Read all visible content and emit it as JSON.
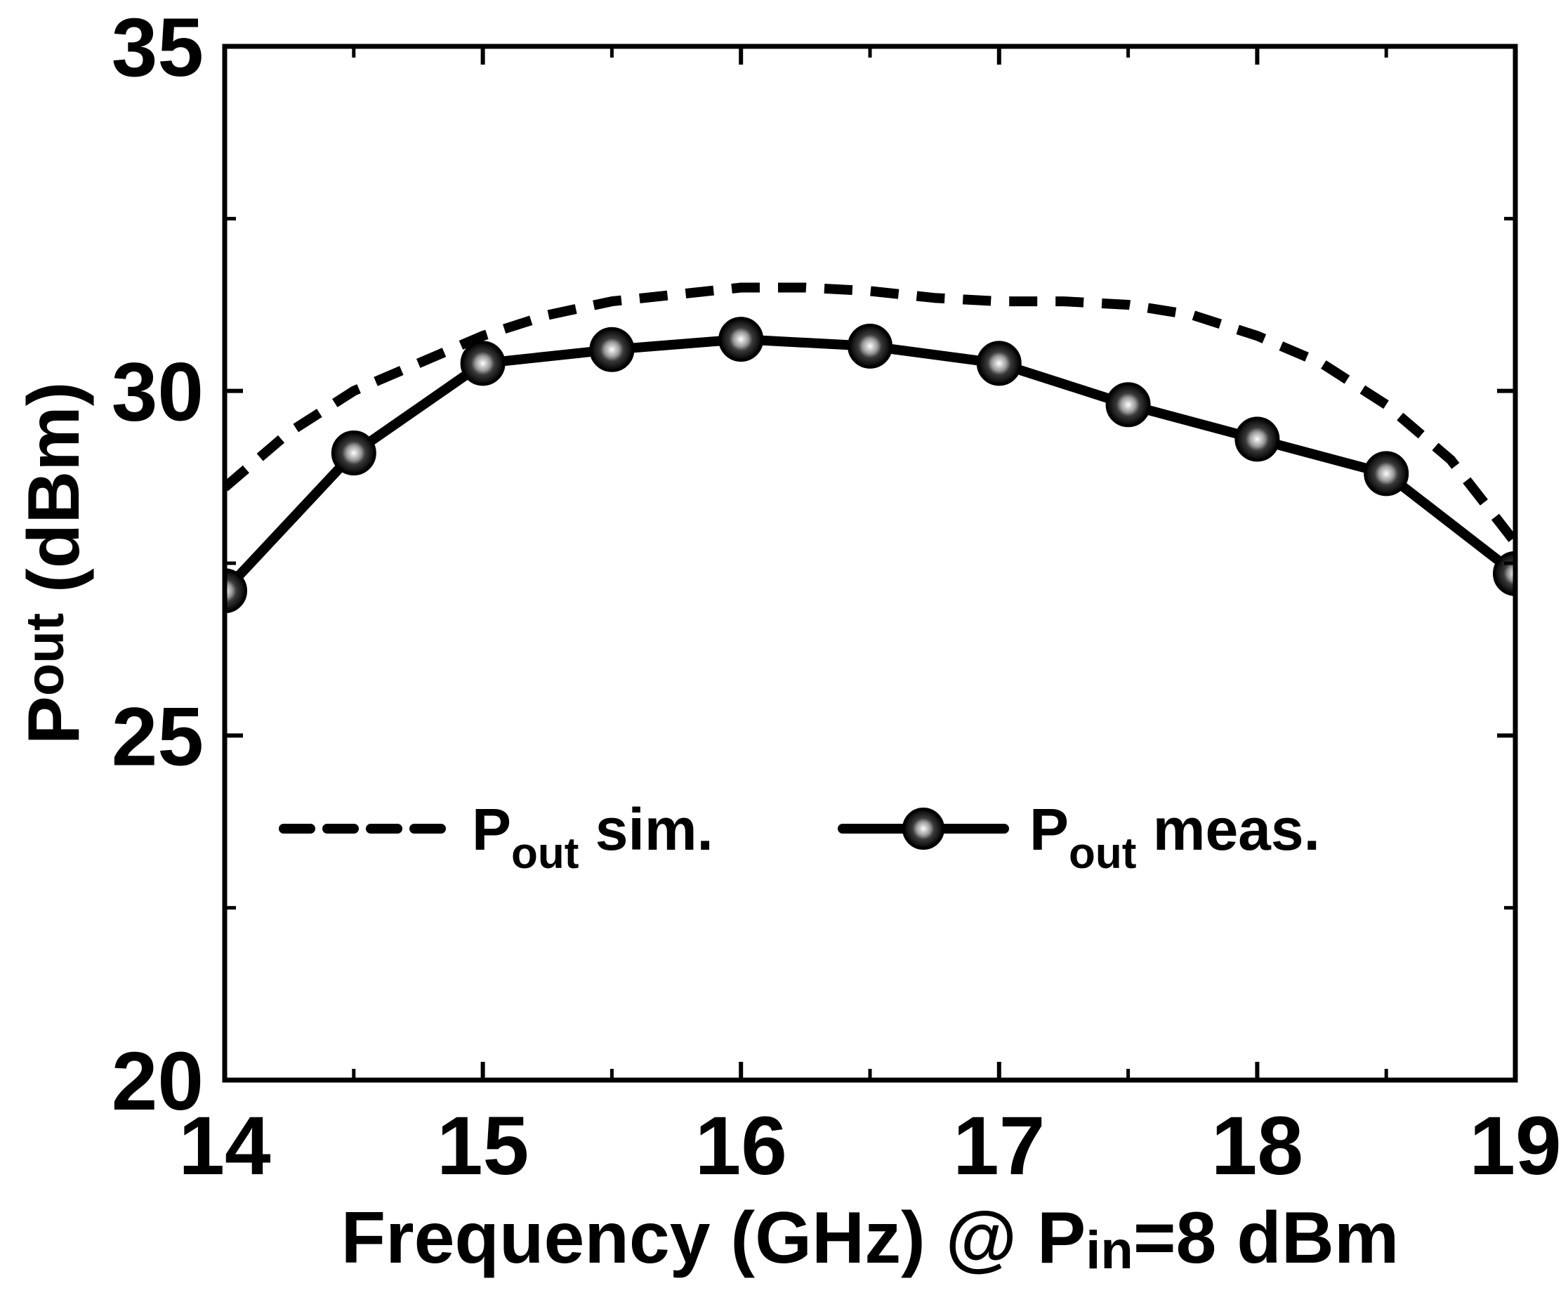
{
  "chart_data": {
    "type": "line",
    "title": "",
    "xlabel": "Frequency (GHz) @ Pin=8 dBm",
    "xlabel_parts": {
      "pre": "Frequency (GHz) @ P",
      "sub": "in",
      "post": "=8 dBm"
    },
    "ylabel": "Pout (dBm)",
    "ylabel_parts": {
      "pre": "P",
      "sub": "out",
      "post": " (dBm)"
    },
    "xlim": [
      14,
      19
    ],
    "ylim": [
      20,
      35
    ],
    "x_ticks": [
      14,
      15,
      16,
      17,
      18,
      19
    ],
    "x_tick_labels": [
      "14",
      "15",
      "16",
      "17",
      "18",
      "19"
    ],
    "x_minor_ticks": [
      14.5,
      15.5,
      16.5,
      17.5,
      18.5
    ],
    "y_ticks": [
      20,
      25,
      30,
      35
    ],
    "y_tick_labels": [
      "20",
      "25",
      "30",
      "35"
    ],
    "y_minor_ticks": [
      22.5,
      27.5,
      32.5
    ],
    "grid": false,
    "legend_position": "lower-center",
    "series": [
      {
        "name": "Pout sim.",
        "legend": {
          "pre": "P",
          "sub": "out",
          "post": " sim."
        },
        "style": "dashed",
        "color": "#000000",
        "x": [
          14,
          14.25,
          14.5,
          14.75,
          15,
          15.25,
          15.5,
          15.75,
          16,
          16.25,
          16.5,
          16.75,
          17,
          17.25,
          17.5,
          17.75,
          18,
          18.25,
          18.5,
          18.75,
          19
        ],
        "values": [
          28.6,
          29.4,
          30.0,
          30.4,
          30.8,
          31.1,
          31.3,
          31.4,
          31.5,
          31.5,
          31.45,
          31.35,
          31.3,
          31.3,
          31.25,
          31.1,
          30.8,
          30.4,
          29.8,
          29.0,
          27.8
        ]
      },
      {
        "name": "Pout meas.",
        "legend": {
          "pre": "P",
          "sub": "out",
          "post": " meas."
        },
        "style": "solid-marker",
        "color": "#000000",
        "x": [
          14,
          14.5,
          15,
          15.5,
          16,
          16.5,
          17,
          17.5,
          18,
          18.5,
          19
        ],
        "values": [
          27.1,
          29.1,
          30.4,
          30.6,
          30.75,
          30.65,
          30.4,
          29.8,
          29.3,
          28.8,
          27.35
        ]
      }
    ]
  }
}
